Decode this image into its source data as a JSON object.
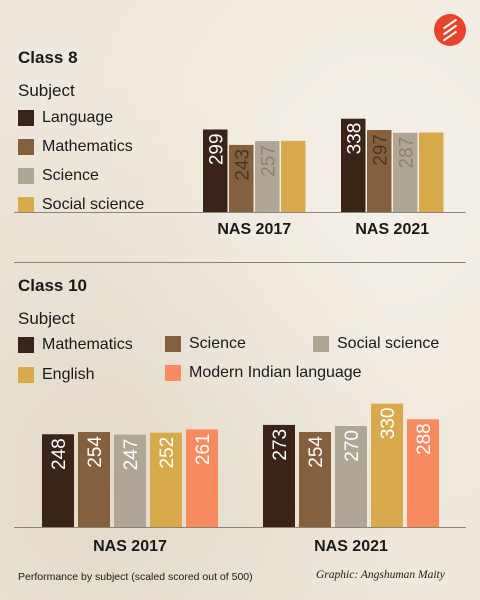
{
  "colors": {
    "language": "#3a2418",
    "mathematics_c8": "#85603f",
    "science_c8": "#b0a696",
    "social_science_c8": "#d9aa4c",
    "c10_mathematics": "#3a2418",
    "c10_science": "#85603f",
    "c10_social_science": "#b0a696",
    "c10_english": "#d9aa4c",
    "c10_modern_indian_language": "#f88a60",
    "logo": "#e8432c"
  },
  "class8": {
    "title": "Class 8",
    "subject_label": "Subject",
    "legend": [
      "Language",
      "Mathematics",
      "Science",
      "Social science"
    ]
  },
  "class10": {
    "title": "Class 10",
    "subject_label": "Subject",
    "legend": [
      "Mathematics",
      "Science",
      "Social science",
      "English",
      "Modern Indian language"
    ]
  },
  "footer": {
    "note": "Performance by subject (scaled scored out of 500)",
    "credit": "Graphic: Angshuman Maity"
  },
  "chart_data": [
    {
      "type": "bar",
      "title": "Class 8",
      "categories": [
        "NAS 2017",
        "NAS 2021"
      ],
      "series": [
        {
          "name": "Language",
          "values": [
            299,
            338
          ]
        },
        {
          "name": "Mathematics",
          "values": [
            243,
            297
          ]
        },
        {
          "name": "Science",
          "values": [
            257,
            287
          ]
        },
        {
          "name": "Social science",
          "values": [
            258,
            288
          ]
        }
      ],
      "legend": "left",
      "grid": false
    },
    {
      "type": "bar",
      "title": "Class 10",
      "categories": [
        "NAS 2017",
        "NAS 2021"
      ],
      "series": [
        {
          "name": "Mathematics",
          "values": [
            248,
            273
          ]
        },
        {
          "name": "Science",
          "values": [
            254,
            254
          ]
        },
        {
          "name": "Social science",
          "values": [
            247,
            270
          ]
        },
        {
          "name": "English",
          "values": [
            252,
            330
          ]
        },
        {
          "name": "Modern Indian language",
          "values": [
            261,
            288
          ]
        }
      ],
      "legend": "top",
      "grid": false
    }
  ]
}
